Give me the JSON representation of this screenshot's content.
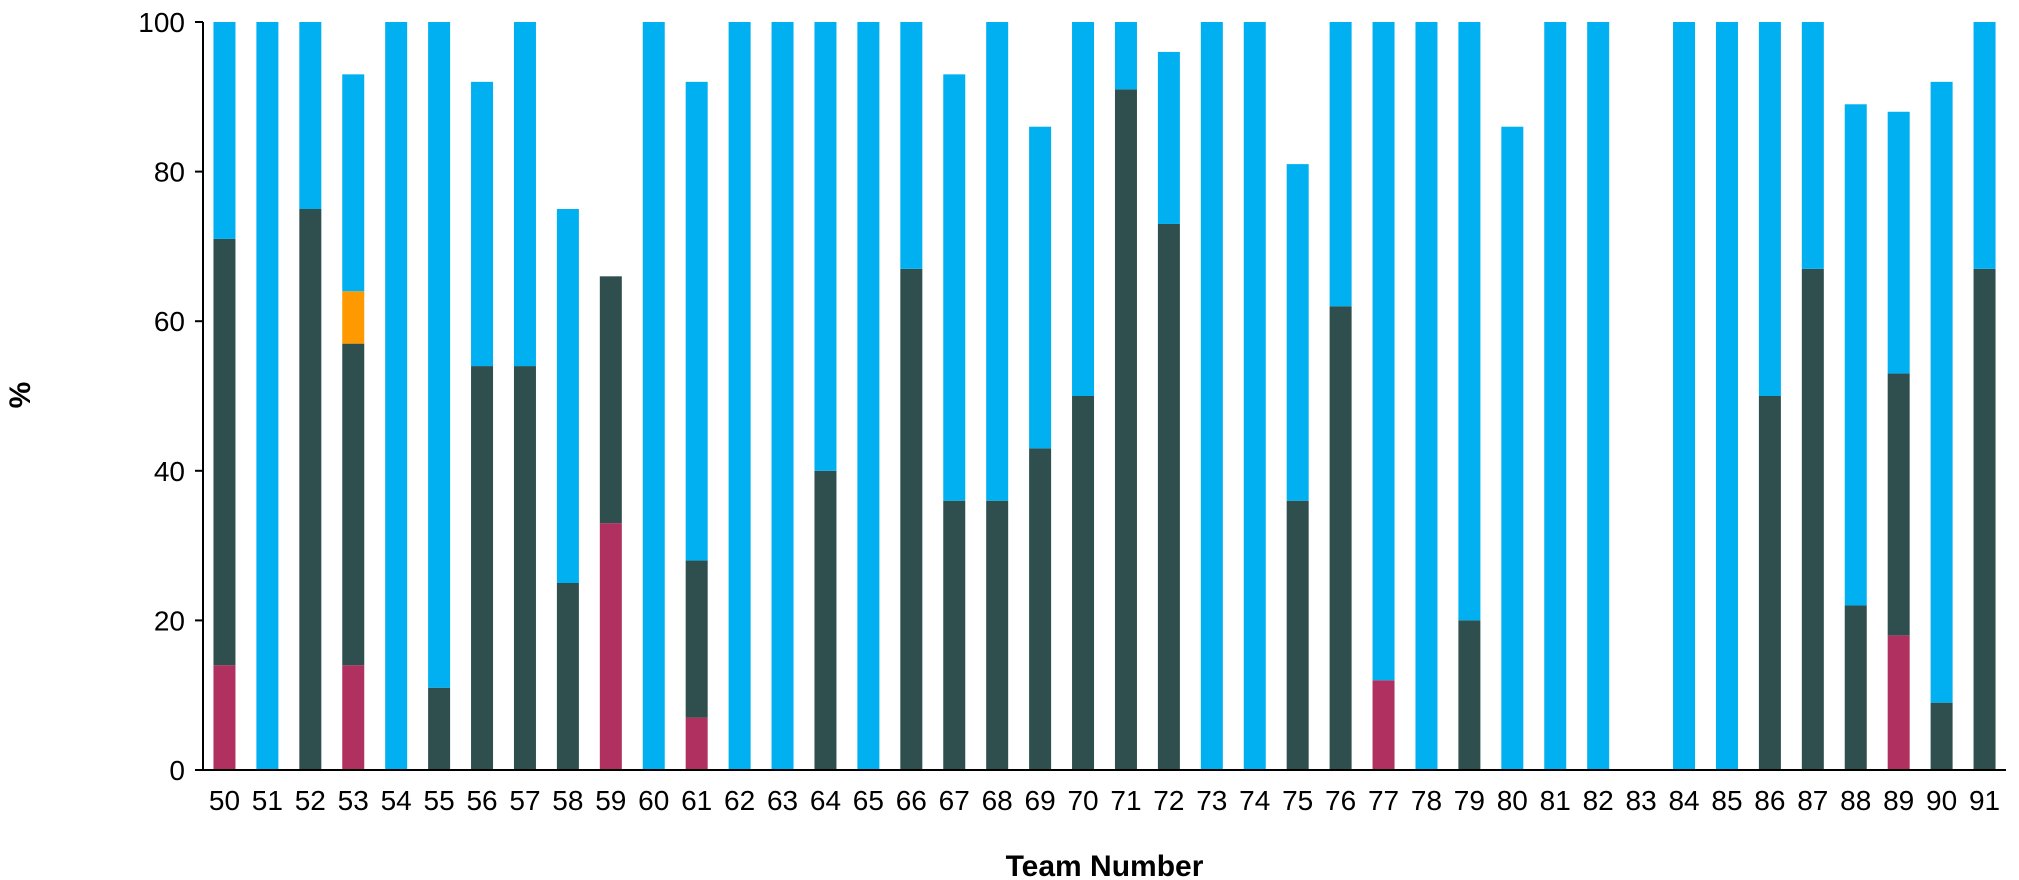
{
  "chart_data": {
    "type": "bar",
    "stacked": true,
    "xlabel": "Team Number",
    "ylabel": "%",
    "ylim": [
      0,
      100
    ],
    "yticks": [
      0,
      20,
      40,
      60,
      80,
      100
    ],
    "grid": false,
    "legend": "none",
    "categories": [
      "50",
      "51",
      "52",
      "53",
      "54",
      "55",
      "56",
      "57",
      "58",
      "59",
      "60",
      "61",
      "62",
      "63",
      "64",
      "65",
      "66",
      "67",
      "68",
      "69",
      "70",
      "71",
      "72",
      "73",
      "74",
      "75",
      "76",
      "77",
      "78",
      "79",
      "80",
      "81",
      "82",
      "83",
      "84",
      "85",
      "86",
      "87",
      "88",
      "89",
      "90",
      "91"
    ],
    "series": [
      {
        "color": "#b03060",
        "values": [
          14,
          0,
          0,
          14,
          0,
          0,
          0,
          0,
          0,
          33,
          0,
          7,
          0,
          0,
          0,
          0,
          0,
          0,
          0,
          0,
          0,
          0,
          0,
          0,
          0,
          0,
          0,
          12,
          0,
          0,
          0,
          0,
          0,
          0,
          0,
          0,
          0,
          0,
          0,
          18,
          0,
          0
        ]
      },
      {
        "color": "#2f4f4f",
        "values": [
          57,
          0,
          75,
          43,
          0,
          11,
          54,
          54,
          25,
          33,
          0,
          21,
          0,
          0,
          40,
          0,
          67,
          36,
          36,
          43,
          50,
          91,
          73,
          0,
          0,
          36,
          62,
          0,
          0,
          20,
          0,
          0,
          0,
          0,
          0,
          0,
          50,
          67,
          22,
          35,
          9,
          67
        ]
      },
      {
        "color": "#ff9900",
        "values": [
          0,
          0,
          0,
          7,
          0,
          0,
          0,
          0,
          0,
          0,
          0,
          0,
          0,
          0,
          0,
          0,
          0,
          0,
          0,
          0,
          0,
          0,
          0,
          0,
          0,
          0,
          0,
          0,
          0,
          0,
          0,
          0,
          0,
          0,
          0,
          0,
          0,
          0,
          0,
          0,
          0,
          0
        ]
      },
      {
        "color": "#00b0f0",
        "values": [
          29,
          100,
          25,
          29,
          100,
          89,
          38,
          46,
          50,
          0,
          100,
          64,
          100,
          100,
          60,
          100,
          33,
          57,
          64,
          43,
          50,
          9,
          23,
          100,
          100,
          45,
          38,
          88,
          100,
          80,
          86,
          100,
          100,
          0,
          100,
          100,
          50,
          33,
          67,
          35,
          83,
          33
        ]
      }
    ]
  }
}
